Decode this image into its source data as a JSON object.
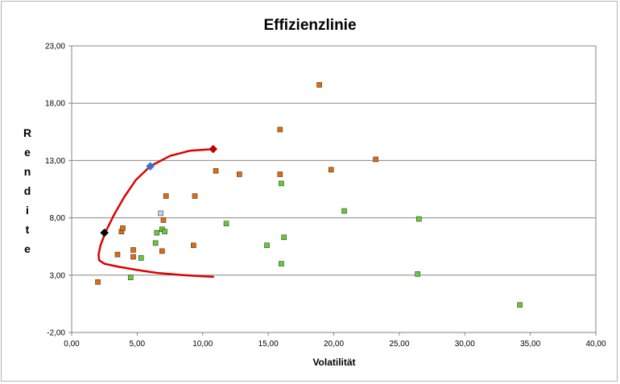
{
  "chart_data": {
    "type": "scatter",
    "title": "Effizienzlinie",
    "xlabel": "Volatilität",
    "ylabel": "Rendite",
    "xlim": [
      0,
      40
    ],
    "ylim": [
      -2,
      23
    ],
    "x_ticks": [
      "0,00",
      "5,00",
      "10,00",
      "15,00",
      "20,00",
      "25,00",
      "30,00",
      "35,00",
      "40,00"
    ],
    "y_ticks": [
      "-2,00",
      "3,00",
      "8,00",
      "13,00",
      "18,00",
      "23,00"
    ],
    "grid": "horizontal",
    "legend": "none",
    "series": [
      {
        "color": "#e36c09",
        "marker": "square",
        "points": [
          [
            2.0,
            2.4
          ],
          [
            3.5,
            4.8
          ],
          [
            3.8,
            6.8
          ],
          [
            3.9,
            7.1
          ],
          [
            4.7,
            4.6
          ],
          [
            4.7,
            5.2
          ],
          [
            6.9,
            5.1
          ],
          [
            7.0,
            7.8
          ],
          [
            7.2,
            9.9
          ],
          [
            9.3,
            5.6
          ],
          [
            9.4,
            9.9
          ],
          [
            11.0,
            12.1
          ],
          [
            12.8,
            11.8
          ],
          [
            15.9,
            15.7
          ],
          [
            15.9,
            11.8
          ],
          [
            18.9,
            19.6
          ],
          [
            19.8,
            12.2
          ],
          [
            23.2,
            13.1
          ]
        ]
      },
      {
        "color": "#66cc33",
        "marker": "square",
        "points": [
          [
            4.5,
            2.8
          ],
          [
            5.3,
            4.5
          ],
          [
            6.4,
            5.8
          ],
          [
            6.5,
            6.7
          ],
          [
            6.9,
            7.0
          ],
          [
            7.1,
            6.8
          ],
          [
            11.8,
            7.5
          ],
          [
            14.9,
            5.6
          ],
          [
            16.0,
            4.0
          ],
          [
            16.0,
            11.0
          ],
          [
            16.2,
            6.3
          ],
          [
            20.8,
            8.6
          ],
          [
            26.4,
            3.1
          ],
          [
            26.5,
            7.9
          ],
          [
            34.2,
            0.4
          ]
        ]
      },
      {
        "color": "#bdd7ee",
        "marker": "square",
        "points": [
          [
            6.8,
            8.4
          ]
        ]
      },
      {
        "color": "#e00000",
        "type": "line",
        "points": [
          [
            10.8,
            14.0
          ],
          [
            9.0,
            13.85
          ],
          [
            7.5,
            13.4
          ],
          [
            6.0,
            12.5
          ],
          [
            4.9,
            11.3
          ],
          [
            4.0,
            9.8
          ],
          [
            3.2,
            8.2
          ],
          [
            2.6,
            6.8
          ],
          [
            2.2,
            5.6
          ],
          [
            2.05,
            4.8
          ],
          [
            2.1,
            4.3
          ],
          [
            2.5,
            4.0
          ],
          [
            3.5,
            3.75
          ],
          [
            5.0,
            3.45
          ],
          [
            6.5,
            3.2
          ],
          [
            8.5,
            3.0
          ],
          [
            10.8,
            2.85
          ]
        ]
      },
      {
        "marker": "diamond",
        "highlights": [
          {
            "x": 2.5,
            "y": 6.7,
            "color": "#000000"
          },
          {
            "x": 6.0,
            "y": 12.5,
            "color": "#2e75d6"
          },
          {
            "x": 10.8,
            "y": 14.0,
            "color": "#c00000"
          }
        ]
      }
    ]
  }
}
